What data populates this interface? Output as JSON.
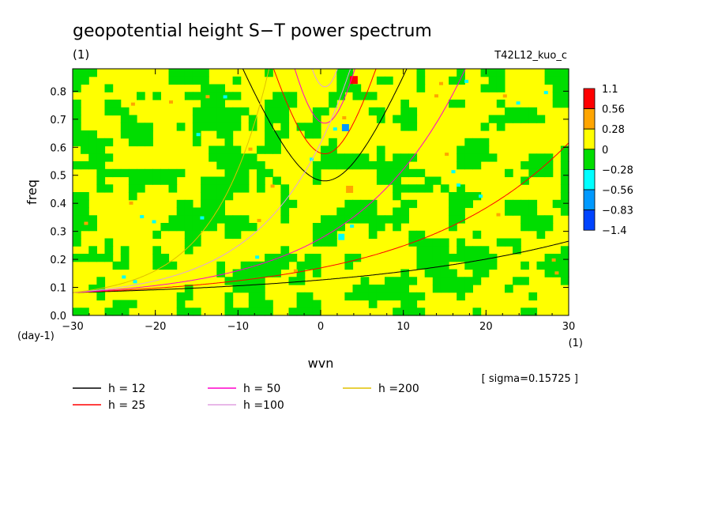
{
  "title": "geopotential height S−T power spectrum",
  "subtitle": "(1)",
  "experiment": "T42L12_kuo_c",
  "sigma_label": "[ sigma=0.15725 ]",
  "chart_data": {
    "type": "heatmap",
    "xlabel": "wvn",
    "ylabel": "freq",
    "x_unit": "(1)",
    "y_unit": "(day-1)",
    "xlim": [
      -30,
      30
    ],
    "ylim": [
      0,
      0.88
    ],
    "x_ticks": [
      -30,
      -20,
      -10,
      0,
      10,
      20,
      30
    ],
    "y_ticks": [
      0.0,
      0.1,
      0.2,
      0.3,
      0.4,
      0.5,
      0.6,
      0.7,
      0.8
    ],
    "x_tick_labels": [
      "−30",
      "−20",
      "−10",
      "0",
      "10",
      "20",
      "30"
    ],
    "y_tick_labels": [
      "0.0",
      "0.1",
      "0.2",
      "0.3",
      "0.4",
      "0.5",
      "0.6",
      "0.7",
      "0.8"
    ],
    "colorbar": {
      "levels": [
        "1.1",
        "0.56",
        "0.28",
        "0",
        "−0.28",
        "−0.56",
        "−0.83",
        "−1.4"
      ],
      "colors": [
        "#ff0000",
        "#ffa500",
        "#ffff00",
        "#00dd00",
        "#00ffff",
        "#0099ff",
        "#0044ff"
      ]
    },
    "field_colors": {
      "yellow": "#ffff00",
      "green": "#00dd00",
      "orange": "#ffa500",
      "red": "#ff0000",
      "cyan": "#00ffff",
      "blue": "#0099ff"
    },
    "series": [
      {
        "name": "h = 12",
        "color": "#000000"
      },
      {
        "name": "h = 25",
        "color": "#ff0000"
      },
      {
        "name": "h = 50",
        "color": "#ff00cc"
      },
      {
        "name": "h =100",
        "color": "#e0a0e0"
      },
      {
        "name": "h =200",
        "color": "#e0c000"
      }
    ]
  }
}
